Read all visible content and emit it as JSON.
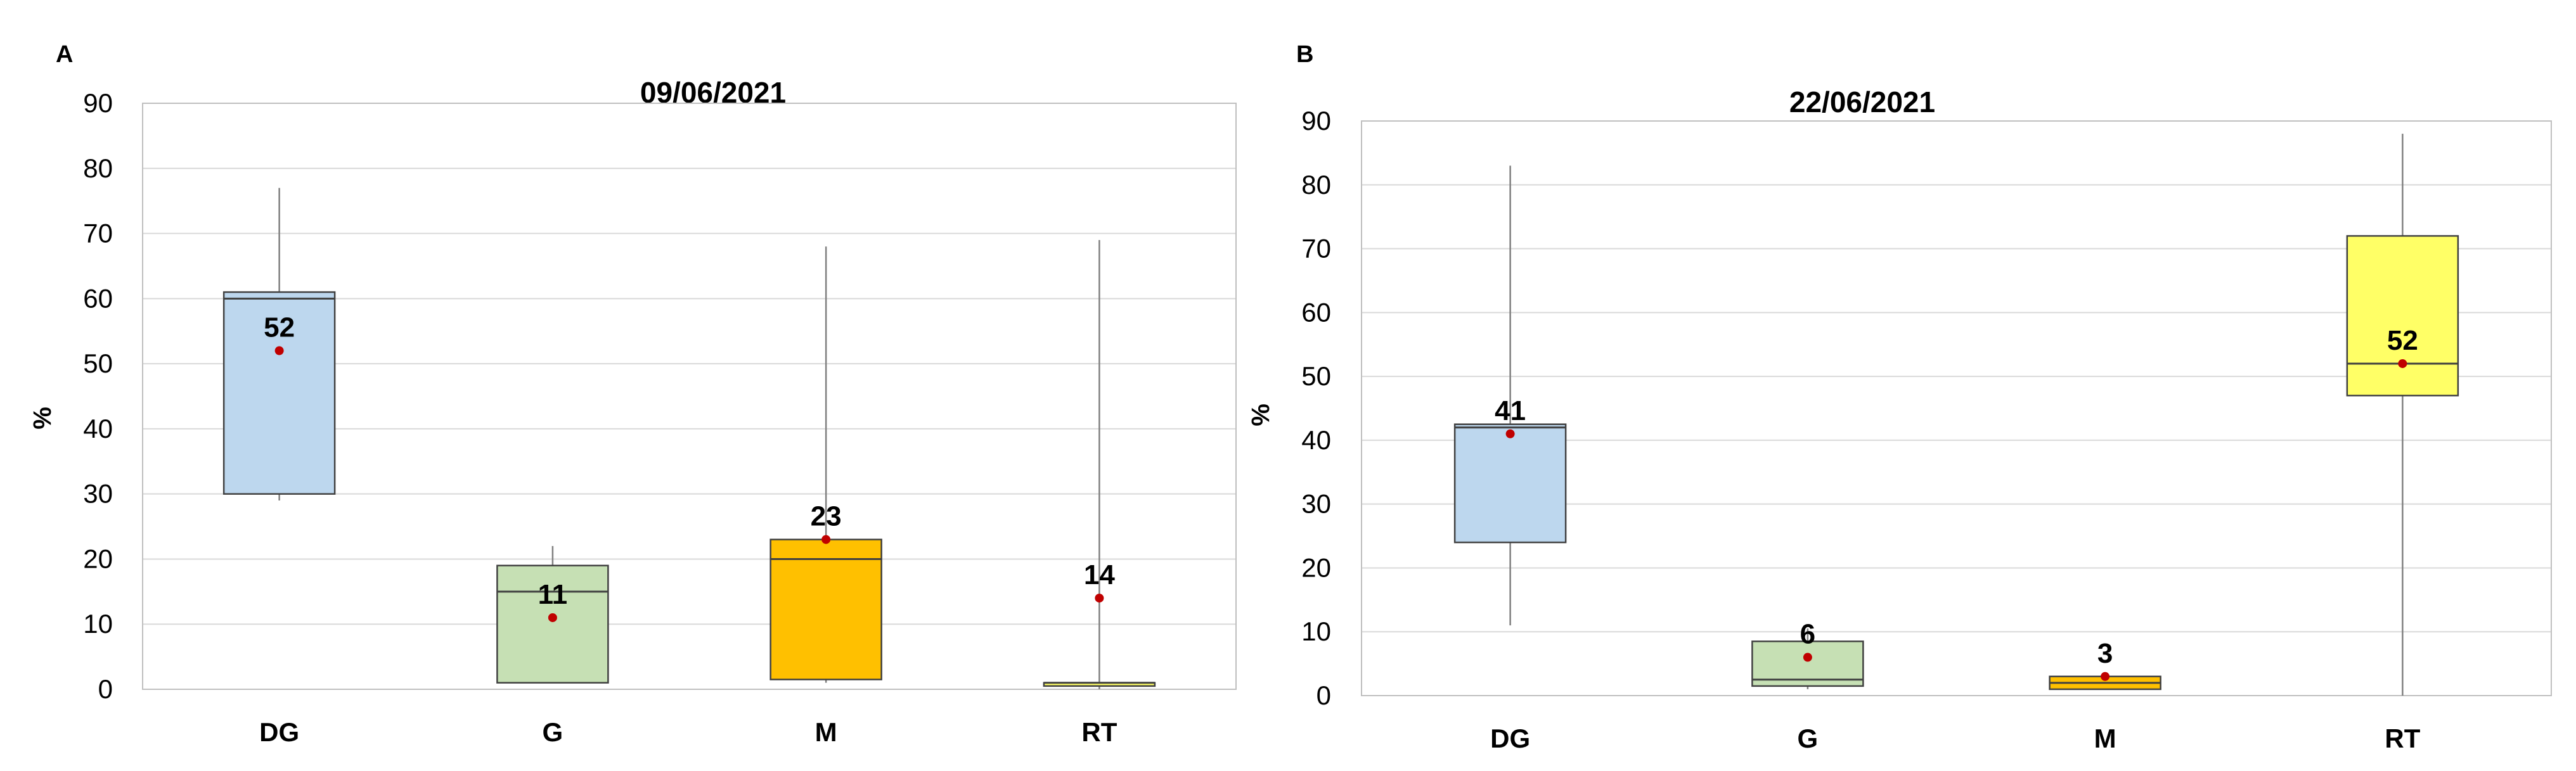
{
  "chart_data": [
    {
      "type": "boxplot",
      "panel_label": "A",
      "title": "09/06/2021",
      "ylabel": "%",
      "ylim": [
        0,
        90
      ],
      "yticks": [
        0,
        10,
        20,
        30,
        40,
        50,
        60,
        70,
        80,
        90
      ],
      "categories": [
        "DG",
        "G",
        "M",
        "RT"
      ],
      "grid": true,
      "boxes": [
        {
          "category": "DG",
          "min": 29,
          "q1": 30,
          "median": 60,
          "q3": 61,
          "max": 77,
          "mean": 52,
          "label": "52",
          "color": "#bdd7ee"
        },
        {
          "category": "G",
          "min": 1,
          "q1": 1,
          "median": 15,
          "q3": 19,
          "max": 22,
          "mean": 11,
          "label": "11",
          "color": "#c6e0b4"
        },
        {
          "category": "M",
          "min": 1,
          "q1": 1.5,
          "median": 20,
          "q3": 23,
          "max": 68,
          "mean": 23,
          "label": "23",
          "color": "#ffc000"
        },
        {
          "category": "RT",
          "min": 0,
          "q1": 0.5,
          "median": 1,
          "q3": 1,
          "max": 69,
          "mean": 14,
          "label": "14",
          "color": "#ffff66"
        }
      ]
    },
    {
      "type": "boxplot",
      "panel_label": "B",
      "title": "22/06/2021",
      "ylabel": "%",
      "ylim": [
        0,
        90
      ],
      "yticks": [
        0,
        10,
        20,
        30,
        40,
        50,
        60,
        70,
        80,
        90
      ],
      "categories": [
        "DG",
        "G",
        "M",
        "RT"
      ],
      "grid": true,
      "boxes": [
        {
          "category": "DG",
          "min": 11,
          "q1": 24,
          "median": 42,
          "q3": 42.5,
          "max": 83,
          "mean": 41,
          "label": "41",
          "color": "#bdd7ee"
        },
        {
          "category": "G",
          "min": 1,
          "q1": 1.5,
          "median": 2.5,
          "q3": 8.5,
          "max": 10.5,
          "mean": 6,
          "label": "6",
          "color": "#c6e0b4"
        },
        {
          "category": "M",
          "min": 1,
          "q1": 1,
          "median": 2,
          "q3": 3,
          "max": 3,
          "mean": 3,
          "label": "3",
          "color": "#ffc000"
        },
        {
          "category": "RT",
          "min": 0,
          "q1": 47,
          "median": 52,
          "q3": 72,
          "max": 88,
          "mean": 52,
          "label": "52",
          "color": "#ffff66"
        }
      ]
    }
  ]
}
